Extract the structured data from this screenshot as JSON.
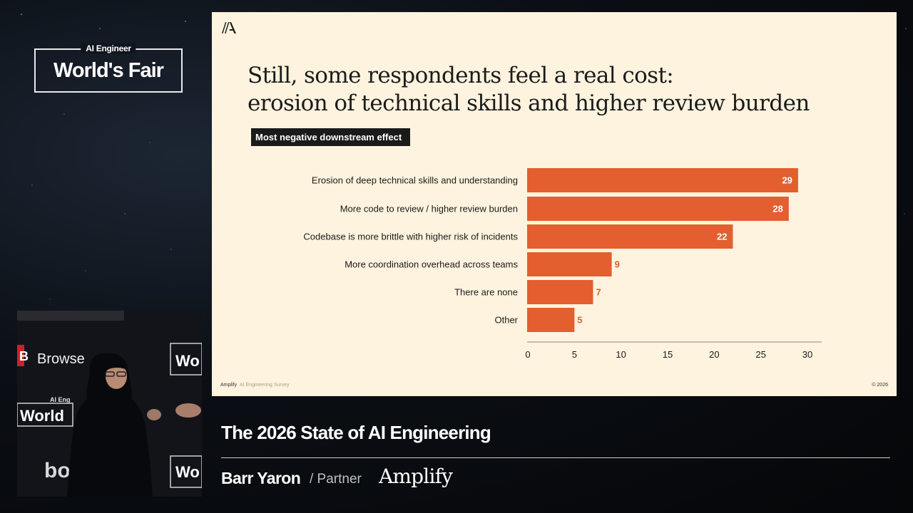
{
  "event": {
    "subtitle": "AI Engineer",
    "title": "World's Fair"
  },
  "slide": {
    "title_line1": "Still, some respondents feel a real cost:",
    "title_line2": "erosion of technical skills and higher review burden",
    "footer_brand": "Amplify",
    "footer_source": "AI Engineering Survey",
    "copyright": "© 2026"
  },
  "chart_data": {
    "type": "bar",
    "orientation": "horizontal",
    "title": "Most negative downstream effect",
    "categories": [
      "Erosion of deep technical skills and understanding",
      "More code to review / higher review burden",
      "Codebase is more brittle with higher risk of incidents",
      "More coordination overhead across teams",
      "There are none",
      "Other"
    ],
    "values": [
      29,
      28,
      22,
      9,
      7,
      5
    ],
    "xlim": [
      0,
      30
    ],
    "xticks": [
      0,
      5,
      10,
      15,
      20,
      25,
      30
    ],
    "bar_color": "#e35f2f",
    "grid": false
  },
  "lower_third": {
    "talk_title": "The 2026 State of AI Engineering",
    "speaker_name": "Barr Yaron",
    "speaker_role": "/ Partner",
    "company": "Amplify"
  },
  "video_backdrop": {
    "left_badge": "B",
    "left_text": "Browse",
    "logo_sub": "AI Eng",
    "logo_main": "World",
    "right_top": "Wo",
    "right_bottom": "Wo",
    "bottom_logo": "bo"
  }
}
